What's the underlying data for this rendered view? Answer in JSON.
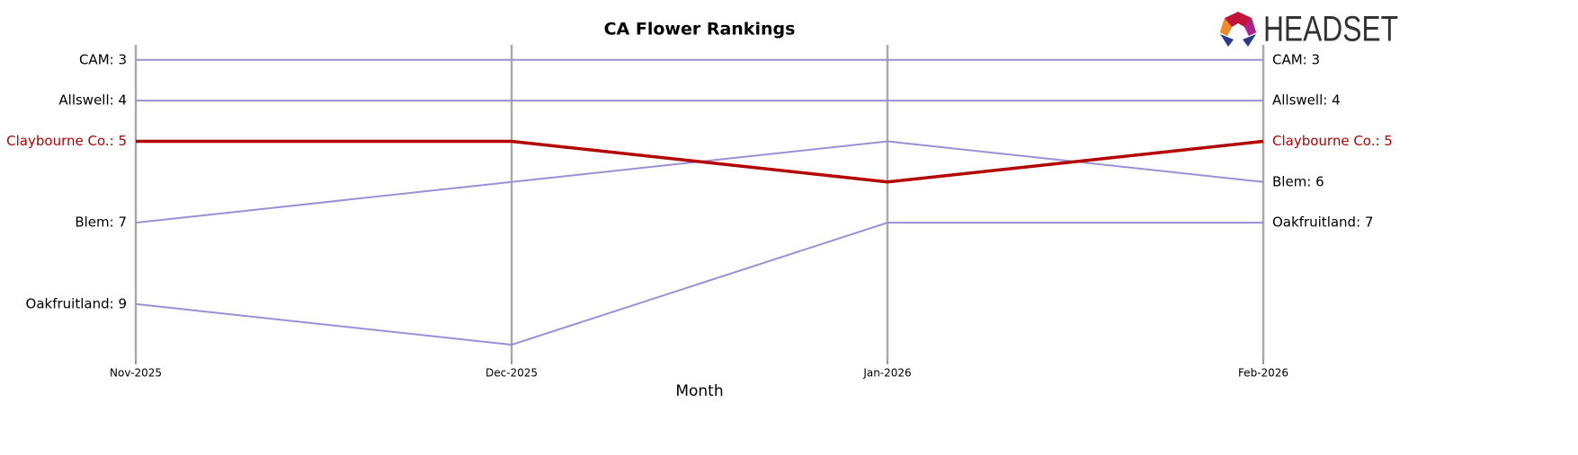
{
  "logo_text": "HEADSET",
  "chart_data": {
    "type": "line",
    "title": "CA Flower Rankings",
    "xlabel": "Month",
    "categories": [
      "Nov-2025",
      "Dec-2025",
      "Jan-2026",
      "Feb-2026"
    ],
    "ylim": [
      10.35,
      2.63
    ],
    "highlight_series": 2,
    "series": [
      {
        "name": "CAM",
        "color": "#9b8fd6",
        "values": [
          3,
          3,
          3,
          3
        ],
        "value_labels": [
          "CAM: 3",
          null,
          null,
          "CAM: 3"
        ]
      },
      {
        "name": "Allswell",
        "color": "#9b8fd6",
        "values": [
          4,
          4,
          4,
          4
        ],
        "value_labels": [
          "Allswell: 4",
          null,
          null,
          "Allswell: 4"
        ]
      },
      {
        "name": "Claybourne Co.",
        "color": "#b30000",
        "values": [
          5,
          5,
          6,
          5
        ],
        "value_labels": [
          "Claybourne Co.: 5",
          null,
          null,
          "Claybourne Co.: 5"
        ]
      },
      {
        "name": "Blem",
        "color": "#9b8fd6",
        "values": [
          7,
          6,
          5,
          6
        ],
        "value_labels": [
          "Blem: 7",
          null,
          null,
          "Blem: 6"
        ]
      },
      {
        "name": "Oakfruitland",
        "color": "#9b8fd6",
        "values": [
          9,
          10,
          7,
          7
        ],
        "value_labels": [
          "Oakfruitland: 9",
          null,
          null,
          "Oakfruitland: 7"
        ]
      }
    ]
  }
}
